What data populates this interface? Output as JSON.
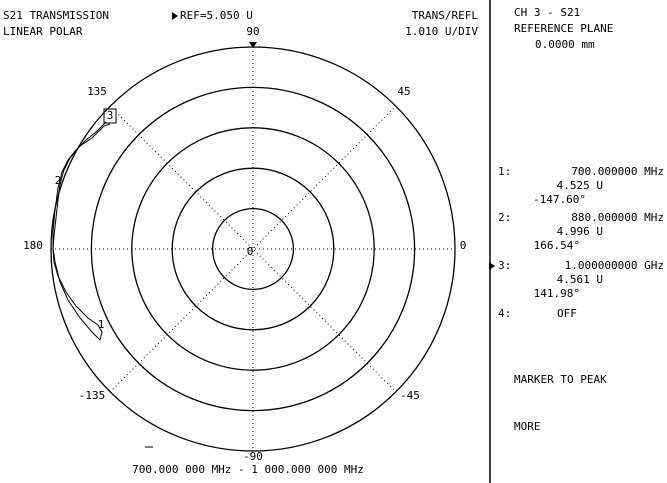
{
  "header": {
    "title": "S21 TRANSMISSION",
    "format": "LINEAR POLAR",
    "reference": "REF=5.050 U",
    "mode": "TRANS/REFL",
    "scale": "1.010 U/DIV"
  },
  "angles": {
    "top": "90",
    "upper_right": "45",
    "right": "0",
    "lower_right": "-45",
    "bottom": "-90",
    "lower_left": "-135",
    "left": "180",
    "upper_left": "135",
    "center": "0"
  },
  "sweep": "700.000 000 MHz - 1 000.000 000 MHz",
  "trace_markers": [
    "1",
    "2",
    "3"
  ],
  "panel": {
    "channel": "CH 3 - S21",
    "reference_plane": "REFERENCE PLANE",
    "plane_value": "0.0000 mm",
    "markers": [
      {
        "index": "1:",
        "frequency": "700.000000 MHz",
        "magnitude": "4.525 U",
        "phase": "-147.60°"
      },
      {
        "index": "2:",
        "frequency": "880.000000 MHz",
        "magnitude": "4.996 U",
        "phase": "166.54°"
      },
      {
        "index": "3:",
        "frequency": "1.000000000 GHz",
        "magnitude": "4.561 U",
        "phase": "141.98°"
      },
      {
        "index": "4:",
        "frequency": "OFF"
      }
    ],
    "softkeys": [
      "MARKER TO PEAK",
      "MORE"
    ]
  }
}
